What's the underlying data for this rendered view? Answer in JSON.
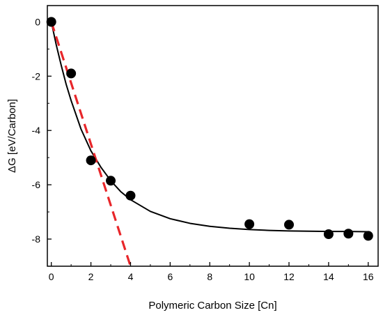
{
  "chart_data": {
    "type": "scatter",
    "xlabel": "Polymeric Carbon Size [Cn]",
    "ylabel": "ΔG [eV/Carbon]",
    "xlim": [
      -0.2,
      16.5
    ],
    "ylim": [
      -9,
      0.6
    ],
    "x_ticks": [
      "0",
      "2",
      "4",
      "6",
      "8",
      "10",
      "12",
      "14",
      "16"
    ],
    "y_ticks": [
      "0",
      "-2",
      "-4",
      "-6",
      "-8"
    ],
    "grid": false,
    "legend": "none",
    "series": [
      {
        "kind": "points",
        "color": "#000000",
        "x": [
          0,
          1,
          2,
          3,
          4,
          10,
          12,
          14,
          15,
          16
        ],
        "y": [
          0,
          -1.9,
          -5.1,
          -5.85,
          -6.4,
          -7.45,
          -7.47,
          -7.82,
          -7.8,
          -7.88
        ]
      },
      {
        "kind": "fit-curve",
        "style": "solid",
        "color": "#000000",
        "x": [
          0,
          0.25,
          0.5,
          0.75,
          1,
          1.5,
          2,
          2.5,
          3,
          3.5,
          4,
          5,
          6,
          7,
          8,
          9,
          10,
          11,
          12,
          13,
          14,
          15,
          16
        ],
        "y": [
          0,
          -0.85,
          -1.6,
          -2.3,
          -2.9,
          -3.95,
          -4.75,
          -5.35,
          -5.85,
          -6.25,
          -6.55,
          -6.98,
          -7.25,
          -7.42,
          -7.53,
          -7.6,
          -7.65,
          -7.68,
          -7.7,
          -7.71,
          -7.72,
          -7.72,
          -7.73
        ]
      },
      {
        "kind": "tangent-line",
        "style": "dashed",
        "color": "#e8262a",
        "x": [
          0,
          4
        ],
        "y": [
          0,
          -9
        ]
      }
    ]
  }
}
